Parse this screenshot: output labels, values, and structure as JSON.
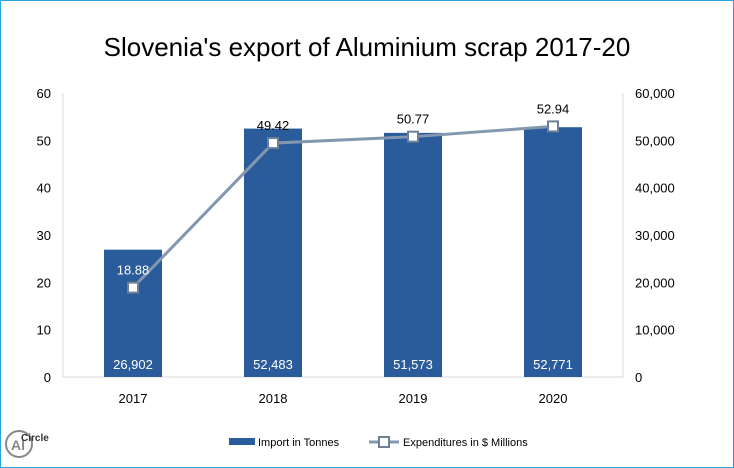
{
  "chart_data": {
    "type": "bar+line",
    "title": "Slovenia's export of Aluminium scrap 2017-20",
    "categories": [
      "2017",
      "2018",
      "2019",
      "2020"
    ],
    "series": [
      {
        "name": "Import in Tonnes",
        "type": "bar",
        "axis": "right",
        "values": [
          26902,
          52483,
          51573,
          52771
        ],
        "labels": [
          "26,902",
          "52,483",
          "51,573",
          "52,771"
        ],
        "color": "#2a5b9a"
      },
      {
        "name": "Expenditures in $ Millions",
        "type": "line",
        "axis": "left",
        "values": [
          18.88,
          49.42,
          50.77,
          52.94
        ],
        "labels": [
          "18.88",
          "49.42",
          "50.77",
          "52.94"
        ],
        "color": "#8497b0"
      }
    ],
    "left_axis": {
      "ylim": [
        0,
        60
      ],
      "ticks": [
        "0",
        "10",
        "20",
        "30",
        "40",
        "50",
        "60"
      ]
    },
    "right_axis": {
      "ylim": [
        0,
        60000
      ],
      "ticks": [
        "0",
        "10,000",
        "20,000",
        "30,000",
        "40,000",
        "50,000",
        "60,000"
      ]
    },
    "legend_position": "bottom",
    "grid": false
  },
  "logo": {
    "text": "AlCircle"
  }
}
